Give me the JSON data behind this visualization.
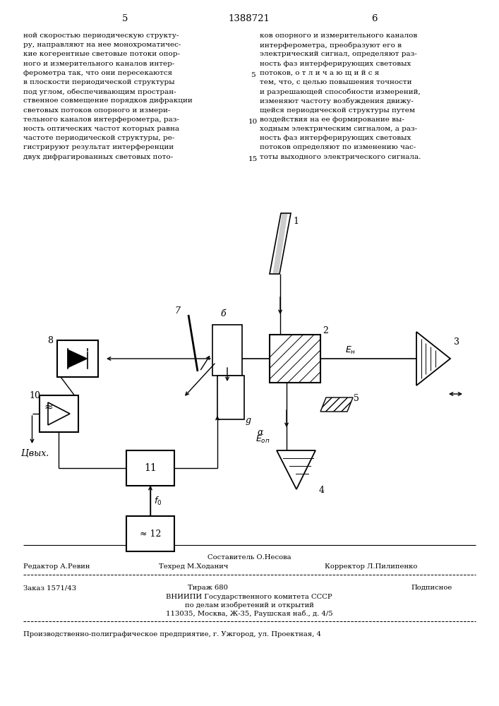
{
  "page_number_left": "5",
  "patent_number": "1388721",
  "page_number_right": "6",
  "text_left": "ной скоростью периодическую структу-\nру, направляют на нее монохроматичес-\nкие когерентные световые потоки опор-\nного и измерительного каналов интер-\nферометра так, что они пересекаются\nв плоскости периодической структуры\nпод углом, обеспечивающим простран-\nственное совмещение порядков дифракции\nсветовых потоков опорного и измери-\nтельного каналов интерферометра, раз-\nность оптических частот которых равна\nчастоте периодической структуры, ре-\nгистрируют результат интерференции\nдвух дифрагированных световых пото-",
  "text_right": "ков опорного и измерительного каналов\nинтерферометра, преобразуют его в\nэлектрический сигнал, определяют раз-\nность фаз интерферирующих световых\nпотоков, о т л и ч а ю щ и й с я\nтем, что, с целью повышения точности\nи разрешающей способности измерений,\nизменяют частоту возбуждения движу-\nщейся периодической структуры путем\nвоздействия на ее формирование вы-\nходным электрическим сигналом, а раз-\nность фаз интерферирующих световых\nпотоков определяют по изменению час-\nтоты выходного электрического сигнала.",
  "composer": "Составитель О.Несова",
  "editor_label": "Редактор А.Ревин",
  "techred_label": "Техред М.Ходанич",
  "corrector_label": "Корректор Л.Пилипенко",
  "order": "Заказ 1571/43",
  "tirage": "Тираж 680",
  "podpisnoe": "Подписное",
  "vniiipi_line1": "ВНИИПИ Государственного комитета СССР",
  "vniiipi_line2": "по делам изобретений и открытий",
  "vniiipi_line3": "113035, Москва, Ж-35, Раушская наб., д. 4/5",
  "factory": "Производственно-полиграфическое предприятие, г. Ужгород, ул. Проектная, 4",
  "bg_color": "#ffffff",
  "text_color": "#000000",
  "font_size_main": 7.5,
  "font_size_small": 7.2,
  "font_size_header": 9.5
}
